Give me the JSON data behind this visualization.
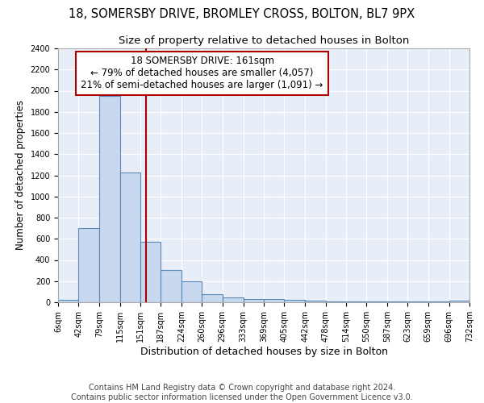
{
  "title1": "18, SOMERSBY DRIVE, BROMLEY CROSS, BOLTON, BL7 9PX",
  "title2": "Size of property relative to detached houses in Bolton",
  "xlabel": "Distribution of detached houses by size in Bolton",
  "ylabel": "Number of detached properties",
  "bar_color": "#c8d8ee",
  "bar_edge_color": "#5a8ab8",
  "background_color": "#e8eef8",
  "grid_color": "#ffffff",
  "fig_background": "#ffffff",
  "bin_edges": [
    6,
    42,
    79,
    115,
    151,
    187,
    224,
    260,
    296,
    333,
    369,
    405,
    442,
    478,
    514,
    550,
    587,
    623,
    659,
    696,
    732
  ],
  "bar_heights": [
    20,
    700,
    1950,
    1230,
    575,
    305,
    200,
    80,
    45,
    30,
    30,
    20,
    15,
    10,
    8,
    8,
    5,
    5,
    5,
    15
  ],
  "red_line_x": 161,
  "annotation_line1": "18 SOMERSBY DRIVE: 161sqm",
  "annotation_line2": "← 79% of detached houses are smaller (4,057)",
  "annotation_line3": "21% of semi-detached houses are larger (1,091) →",
  "annotation_box_color": "#ffffff",
  "annotation_box_edge_color": "#aa0000",
  "ylim": [
    0,
    2400
  ],
  "yticks": [
    0,
    200,
    400,
    600,
    800,
    1000,
    1200,
    1400,
    1600,
    1800,
    2000,
    2200,
    2400
  ],
  "footer_text": "Contains HM Land Registry data © Crown copyright and database right 2024.\nContains public sector information licensed under the Open Government Licence v3.0.",
  "title1_fontsize": 10.5,
  "title2_fontsize": 9.5,
  "xlabel_fontsize": 9,
  "ylabel_fontsize": 8.5,
  "tick_fontsize": 7,
  "annotation_fontsize": 8.5,
  "footer_fontsize": 7
}
